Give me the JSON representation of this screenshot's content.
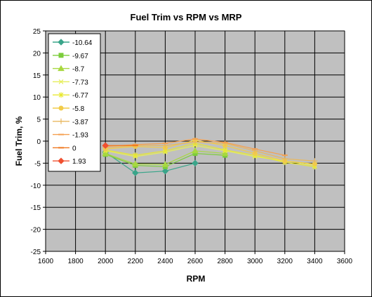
{
  "chart_data": {
    "type": "line",
    "title": "Fuel Trim vs RPM vs MRP",
    "xlabel": "RPM",
    "ylabel": "Fuel Trim, %",
    "xlim": [
      1600,
      3600
    ],
    "ylim": [
      -25,
      25
    ],
    "xticks": [
      1600,
      1800,
      2000,
      2200,
      2400,
      2600,
      2800,
      3000,
      3200,
      3400,
      3600
    ],
    "yticks": [
      -25,
      -20,
      -15,
      -10,
      -5,
      0,
      5,
      10,
      15,
      20,
      25
    ],
    "x": [
      2000,
      2200,
      2400,
      2600,
      2800,
      3000,
      3200,
      3400
    ],
    "grid": true,
    "plot_background": "#c0c0c0",
    "grid_color": "#000000",
    "legend_position": "top-left inside plot",
    "series": [
      {
        "name": "-10.64",
        "color": "#3aa58a",
        "marker": "diamond",
        "values": [
          -2.5,
          -7.2,
          -6.8,
          -5.0,
          null,
          null,
          null,
          null
        ]
      },
      {
        "name": "-9.67",
        "color": "#7ccd3c",
        "marker": "square",
        "values": [
          -3.0,
          -5.5,
          -5.8,
          -2.8,
          -3.2,
          null,
          null,
          null
        ]
      },
      {
        "name": "-8.7",
        "color": "#a8d840",
        "marker": "triangle",
        "values": [
          -2.8,
          -5.2,
          -5.3,
          -2.2,
          -2.8,
          null,
          null,
          null
        ]
      },
      {
        "name": "-7.73",
        "color": "#e6ee5a",
        "marker": "x",
        "values": [
          -2.2,
          -3.5,
          -2.5,
          -1.0,
          -2.2,
          -3.5,
          -4.5,
          -5.5
        ]
      },
      {
        "name": "-6.77",
        "color": "#e8e830",
        "marker": "star",
        "values": [
          -2.0,
          -3.2,
          -2.2,
          -0.5,
          -2.0,
          -3.2,
          -4.8,
          -5.8
        ]
      },
      {
        "name": "-5.8",
        "color": "#f2cc4a",
        "marker": "circle",
        "values": [
          -1.8,
          -1.2,
          -1.5,
          0.2,
          -1.0,
          -2.8,
          -4.5,
          -5.2
        ]
      },
      {
        "name": "-3.87",
        "color": "#e8b860",
        "marker": "plus",
        "values": [
          -1.5,
          -1.0,
          -1.0,
          -0.2,
          -0.5,
          -2.2,
          -4.0,
          -4.5
        ]
      },
      {
        "name": "-1.93",
        "color": "#f5a050",
        "marker": "dash",
        "values": [
          -1.2,
          -0.8,
          -0.5,
          0.5,
          -0.3,
          -1.8,
          -3.2,
          null
        ]
      },
      {
        "name": "0",
        "color": "#f07820",
        "marker": "dash",
        "values": [
          -1.0,
          -1.0,
          null,
          null,
          null,
          null,
          null,
          null
        ]
      },
      {
        "name": "1.93",
        "color": "#f05030",
        "marker": "diamond",
        "values": [
          -1.0,
          null,
          null,
          null,
          null,
          null,
          null,
          null
        ]
      }
    ]
  }
}
